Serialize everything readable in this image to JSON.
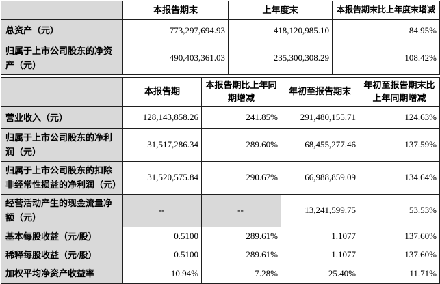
{
  "colors": {
    "shaded_cell_bg": "#d9d9d9",
    "border": "#1f1f1f",
    "text": "#000000",
    "cell_bg": "#ffffff"
  },
  "table1": {
    "headers": [
      "",
      "本报告期末",
      "上年度末",
      "本报告期末比上年度末增减"
    ],
    "rows": [
      {
        "label": "总资产（元）",
        "values": [
          "773,297,694.93",
          "418,120,985.10",
          "84.95%"
        ]
      },
      {
        "label": "归属于上市公司股东的净资产（元）",
        "values": [
          "490,403,361.03",
          "235,300,308.29",
          "108.42%"
        ]
      }
    ]
  },
  "table2": {
    "headers": [
      "",
      "本报告期",
      "本报告期比上年同期增减",
      "年初至报告期末",
      "年初至报告期末比上年同期增减"
    ],
    "rows": [
      {
        "label": "营业收入（元）",
        "values": [
          "128,143,858.26",
          "241.85%",
          "291,480,155.71",
          "124.63%"
        ]
      },
      {
        "label": "归属于上市公司股东的净利润（元）",
        "values": [
          "31,517,286.34",
          "289.60%",
          "68,455,277.46",
          "137.59%"
        ]
      },
      {
        "label": "归属于上市公司股东的扣除非经常性损益的净利润（元）",
        "values": [
          "31,520,575.84",
          "290.67%",
          "66,988,859.09",
          "134.64%"
        ]
      },
      {
        "label": "经营活动产生的现金流量净额（元）",
        "values": [
          "--",
          "--",
          "13,241,599.75",
          "53.53%"
        ]
      },
      {
        "label": "基本每股收益（元/股）",
        "values": [
          "0.5100",
          "289.61%",
          "1.1077",
          "137.60%"
        ]
      },
      {
        "label": "稀释每股收益（元/股）",
        "values": [
          "0.5100",
          "289.61%",
          "1.1077",
          "137.60%"
        ]
      },
      {
        "label": "加权平均净资产收益率",
        "values": [
          "10.94%",
          "7.28%",
          "25.40%",
          "11.71%"
        ]
      }
    ]
  }
}
